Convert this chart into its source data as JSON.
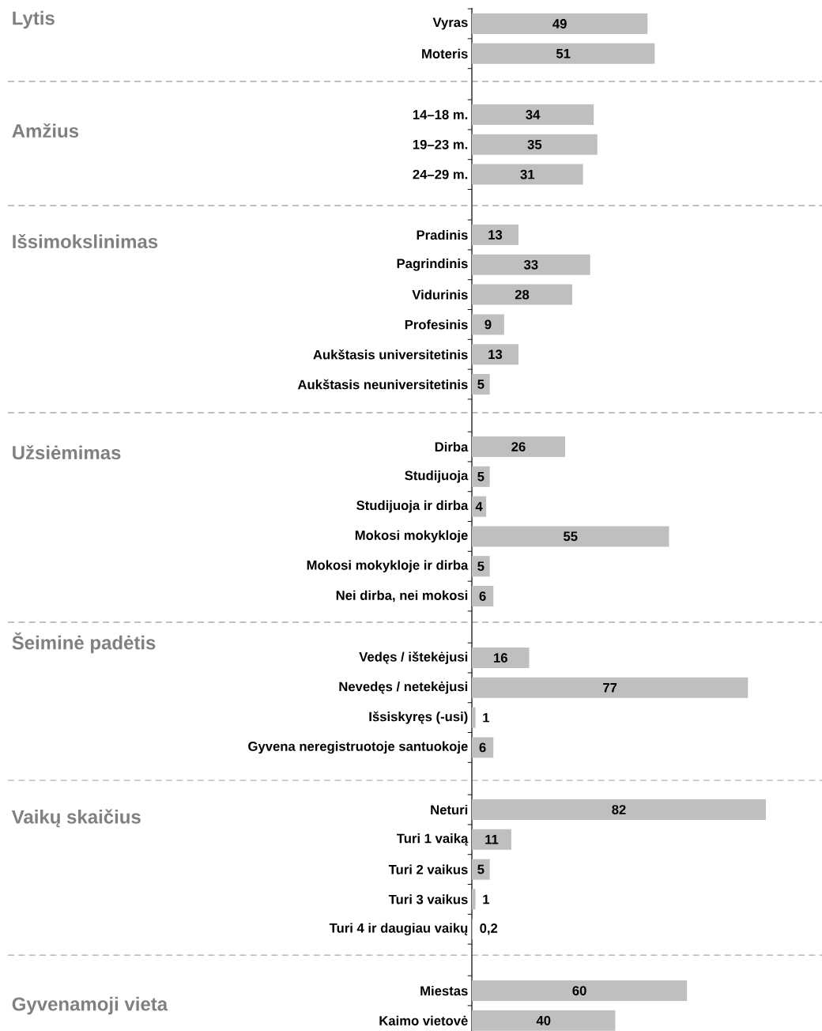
{
  "chart_data": [
    {
      "type": "bar",
      "orientation": "horizontal",
      "ylabel": "Lytis",
      "categories": [
        "Vyras",
        "Moteris"
      ],
      "values": [
        49,
        51
      ],
      "value_labels": [
        "49",
        "51"
      ],
      "color": "#bfbfbf",
      "xlim": [
        0,
        97
      ],
      "tick_labels": "y"
    },
    {
      "type": "bar",
      "orientation": "horizontal",
      "ylabel": "Amžius",
      "categories": [
        "14–18 m.",
        "19–23 m.",
        "24–29 m."
      ],
      "values": [
        34,
        35,
        31
      ],
      "value_labels": [
        "34",
        "35",
        "31"
      ],
      "color": "#bfbfbf",
      "xlim": [
        0,
        97
      ],
      "tick_labels": "y"
    },
    {
      "type": "bar",
      "orientation": "horizontal",
      "ylabel": "Išsimokslinimas",
      "categories": [
        "Pradinis",
        "Pagrindinis",
        "Vidurinis",
        "Profesinis",
        "Aukštasis universitetinis",
        "Aukštasis neuniversitetinis"
      ],
      "values": [
        13,
        33,
        28,
        9,
        13,
        5
      ],
      "value_labels": [
        "13",
        "33",
        "28",
        "9",
        "13",
        "5"
      ],
      "color": "#bfbfbf",
      "xlim": [
        0,
        97
      ],
      "tick_labels": "y"
    },
    {
      "type": "bar",
      "orientation": "horizontal",
      "ylabel": "Užsiėmimas",
      "categories": [
        "Dirba",
        "Studijuoja",
        "Studijuoja ir dirba",
        "Mokosi mokykloje",
        "Mokosi mokykloje ir dirba",
        "Nei dirba, nei mokosi"
      ],
      "values": [
        26,
        5,
        4,
        55,
        5,
        6
      ],
      "value_labels": [
        "26",
        "5",
        "4",
        "55",
        "5",
        "6"
      ],
      "color": "#bfbfbf",
      "xlim": [
        0,
        97
      ],
      "tick_labels": "y"
    },
    {
      "type": "bar",
      "orientation": "horizontal",
      "ylabel": "Šeiminė padėtis",
      "categories": [
        "Vedęs / ištekėjusi",
        "Nevedęs / netekėjusi",
        "Išsiskyręs (-usi)",
        "Gyvena neregistruotoje santuokoje"
      ],
      "values": [
        16,
        77,
        1,
        6
      ],
      "value_labels": [
        "16",
        "77",
        "1",
        "6"
      ],
      "color": "#bfbfbf",
      "xlim": [
        0,
        97
      ],
      "tick_labels": "y"
    },
    {
      "type": "bar",
      "orientation": "horizontal",
      "ylabel": "Vaikų skaičius",
      "categories": [
        "Neturi",
        "Turi 1 vaiką",
        "Turi 2 vaikus",
        "Turi 3 vaikus",
        "Turi 4 ir daugiau vaikų"
      ],
      "values": [
        82,
        11,
        5,
        1,
        0.2
      ],
      "value_labels": [
        "82",
        "11",
        "5",
        "1",
        "0,2"
      ],
      "color": "#bfbfbf",
      "xlim": [
        0,
        97
      ],
      "tick_labels": "y"
    },
    {
      "type": "bar",
      "orientation": "horizontal",
      "ylabel": "Gyvenamoji vieta",
      "categories": [
        "Miestas",
        "Kaimo vietovė"
      ],
      "values": [
        60,
        40
      ],
      "value_labels": [
        "60",
        "40"
      ],
      "color": "#bfbfbf",
      "xlim": [
        0,
        97
      ],
      "tick_labels": "y"
    }
  ]
}
